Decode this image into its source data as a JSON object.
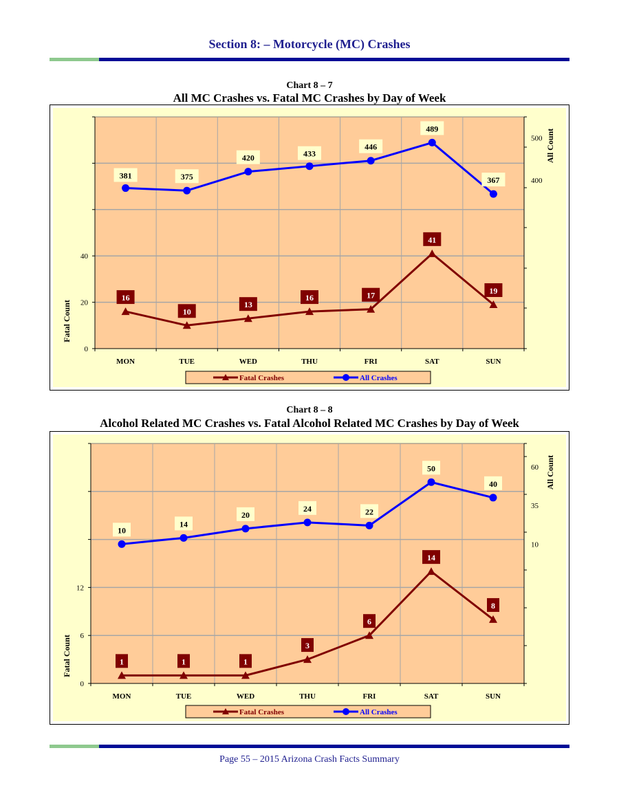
{
  "page": {
    "section_title": "Section 8: – Motorcycle (MC) Crashes",
    "footer": "Page 55 – 2015 Arizona Crash Facts Summary"
  },
  "colors": {
    "fatal": "#800000",
    "all": "#0000ff",
    "plot_bg": "#ffcc99",
    "outer_bg": "#ffffcc",
    "grid": "#a6a6a6"
  },
  "chart_data": [
    {
      "type": "line",
      "subtitle": "Chart 8 – 7",
      "title": "All MC Crashes vs. Fatal MC Crashes by Day of Week",
      "categories": [
        "MON",
        "TUE",
        "WED",
        "THU",
        "FRI",
        "SAT",
        "SUN"
      ],
      "ylabel_left": "Fatal Count",
      "ylabel_right": "All Count",
      "left_ticks": [
        0,
        20,
        40
      ],
      "right_ticks": [
        400,
        500
      ],
      "left_axis_range": [
        0,
        100
      ],
      "right_axis_range": [
        0,
        550
      ],
      "grid": true,
      "legend_position": "bottom",
      "series": [
        {
          "name": "Fatal Crashes",
          "axis": "left",
          "marker": "triangle",
          "values": [
            16,
            10,
            13,
            16,
            17,
            41,
            19
          ]
        },
        {
          "name": "All Crashes",
          "axis": "right",
          "marker": "circle",
          "values": [
            381,
            375,
            420,
            433,
            446,
            489,
            367
          ]
        }
      ]
    },
    {
      "type": "line",
      "subtitle": "Chart 8 – 8",
      "title": "Alcohol Related MC Crashes vs. Fatal Alcohol Related MC Crashes by Day of Week",
      "categories": [
        "MON",
        "TUE",
        "WED",
        "THU",
        "FRI",
        "SAT",
        "SUN"
      ],
      "ylabel_left": "Fatal Count",
      "ylabel_right": "All Count",
      "left_ticks": [
        0,
        6,
        12
      ],
      "right_ticks": [
        10,
        35,
        60
      ],
      "left_axis_range": [
        0,
        30
      ],
      "right_axis_range": [
        -80,
        75
      ],
      "grid": true,
      "legend_position": "bottom",
      "series": [
        {
          "name": "Fatal Crashes",
          "axis": "left",
          "marker": "triangle",
          "values": [
            1,
            1,
            1,
            3,
            6,
            14,
            8
          ]
        },
        {
          "name": "All Crashes",
          "axis": "right",
          "marker": "circle",
          "values": [
            10,
            14,
            20,
            24,
            22,
            50,
            40
          ]
        }
      ]
    }
  ]
}
